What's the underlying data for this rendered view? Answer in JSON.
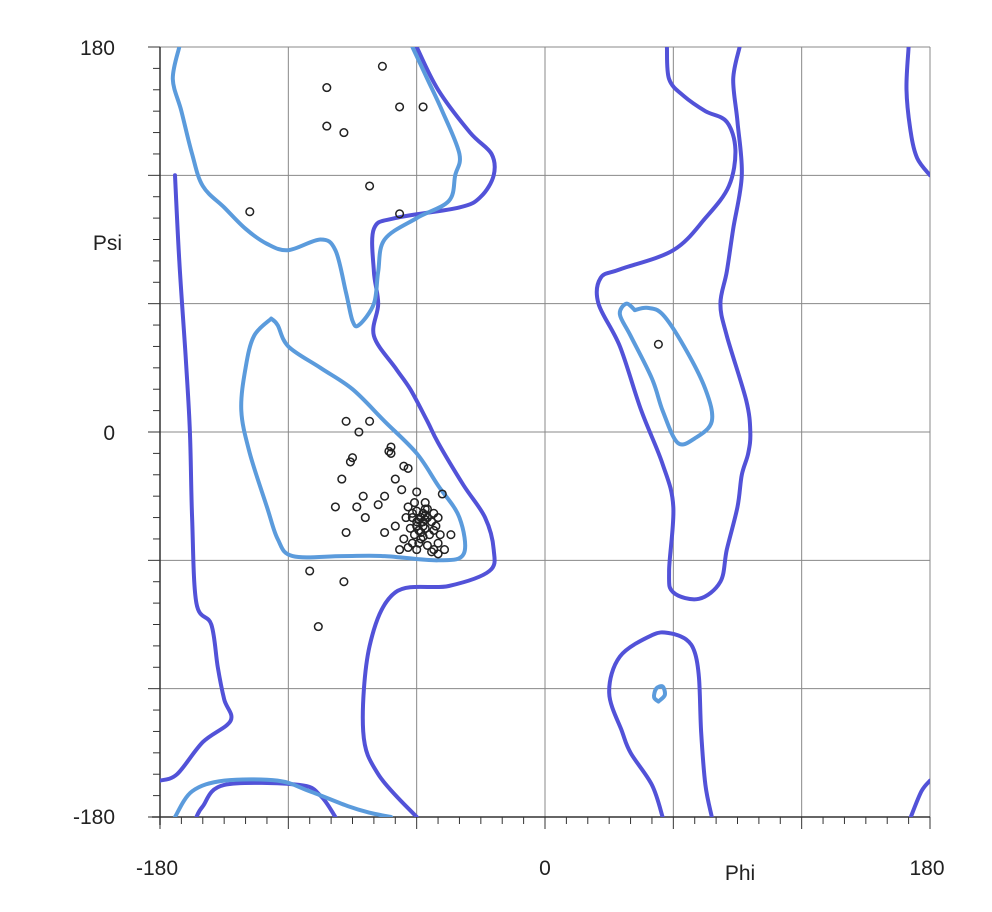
{
  "chart_data": {
    "type": "scatter",
    "title": "",
    "xlabel": "Phi",
    "ylabel": "Psi",
    "xlim": [
      -180,
      180
    ],
    "ylim": [
      -180,
      180
    ],
    "grid": true,
    "major_grid_step": 60,
    "x_tick_labels": [
      "-180",
      "0",
      "180"
    ],
    "x_tick_values": [
      -180,
      0,
      180
    ],
    "y_tick_labels": [
      "180",
      "0",
      "-180"
    ],
    "y_tick_values": [
      180,
      0,
      -180
    ],
    "colors": {
      "favored_contour": "#5b9bdc",
      "allowed_contour": "#5252d8",
      "points": "#222222",
      "grid": "#888888"
    },
    "contours": {
      "allowed": [
        [
          [
            -173,
            120
          ],
          [
            -171,
            80
          ],
          [
            -168,
            35
          ],
          [
            -166,
            0
          ],
          [
            -165,
            -40
          ],
          [
            -163,
            -80
          ],
          [
            -156,
            -90
          ],
          [
            -153,
            -110
          ],
          [
            -150,
            -125
          ],
          [
            -147,
            -135
          ],
          [
            -160,
            -145
          ],
          [
            -172,
            -160
          ],
          [
            -180,
            -163
          ]
        ],
        [
          [
            -98,
            -180
          ],
          [
            -105,
            -170
          ],
          [
            -115,
            -165
          ],
          [
            -150,
            -165
          ],
          [
            -160,
            -175
          ],
          [
            -163,
            -180
          ]
        ],
        [
          [
            -60,
            180
          ],
          [
            -50,
            160
          ],
          [
            -35,
            140
          ],
          [
            -25,
            130
          ],
          [
            -24,
            120
          ],
          [
            -30,
            110
          ],
          [
            -40,
            105
          ],
          [
            -70,
            100
          ],
          [
            -80,
            95
          ],
          [
            -80,
            75
          ],
          [
            -78,
            60
          ],
          [
            -80,
            45
          ],
          [
            -70,
            30
          ],
          [
            -63,
            20
          ],
          [
            -55,
            5
          ],
          [
            -50,
            -5
          ],
          [
            -38,
            -25
          ],
          [
            -28,
            -40
          ],
          [
            -24,
            -55
          ],
          [
            -26,
            -65
          ],
          [
            -45,
            -72
          ],
          [
            -70,
            -75
          ],
          [
            -82,
            -100
          ],
          [
            -85,
            -140
          ],
          [
            -78,
            -160
          ],
          [
            -60,
            -180
          ]
        ],
        [
          [
            57,
            180
          ],
          [
            58,
            165
          ],
          [
            65,
            157
          ],
          [
            75,
            150
          ],
          [
            85,
            145
          ],
          [
            89,
            132
          ],
          [
            86,
            115
          ],
          [
            75,
            100
          ],
          [
            60,
            85
          ],
          [
            35,
            76
          ],
          [
            26,
            72
          ],
          [
            25,
            60
          ],
          [
            35,
            40
          ],
          [
            45,
            10
          ],
          [
            55,
            -15
          ],
          [
            60,
            -35
          ],
          [
            58,
            -65
          ],
          [
            60,
            -75
          ],
          [
            72,
            -78
          ],
          [
            82,
            -70
          ],
          [
            85,
            -55
          ],
          [
            90,
            -35
          ],
          [
            92,
            -20
          ],
          [
            95,
            -10
          ],
          [
            96,
            0
          ],
          [
            94,
            15
          ],
          [
            85,
            45
          ],
          [
            82,
            60
          ],
          [
            85,
            75
          ],
          [
            88,
            95
          ],
          [
            92,
            120
          ],
          [
            90,
            145
          ],
          [
            88,
            165
          ],
          [
            91,
            180
          ]
        ],
        [
          [
            55,
            -180
          ],
          [
            50,
            -165
          ],
          [
            40,
            -150
          ],
          [
            36,
            -140
          ],
          [
            30,
            -122
          ],
          [
            35,
            -105
          ],
          [
            50,
            -95
          ],
          [
            58,
            -94
          ],
          [
            66,
            -97
          ],
          [
            70,
            -103
          ],
          [
            72,
            -115
          ],
          [
            73,
            -140
          ],
          [
            75,
            -165
          ],
          [
            78,
            -180
          ]
        ],
        [
          [
            170,
            180
          ],
          [
            169,
            160
          ],
          [
            171,
            140
          ],
          [
            174,
            128
          ],
          [
            180,
            120
          ]
        ],
        [
          [
            180,
            -163
          ],
          [
            176,
            -168
          ],
          [
            171,
            -180
          ]
        ]
      ],
      "favored": [
        [
          [
            -171,
            180
          ],
          [
            -174,
            165
          ],
          [
            -170,
            150
          ],
          [
            -165,
            130
          ],
          [
            -160,
            115
          ],
          [
            -150,
            105
          ],
          [
            -140,
            95
          ],
          [
            -130,
            88
          ],
          [
            -120,
            85
          ],
          [
            -105,
            90
          ],
          [
            -98,
            85
          ],
          [
            -93,
            65
          ],
          [
            -90,
            52
          ],
          [
            -87,
            50
          ],
          [
            -80,
            60
          ],
          [
            -78,
            75
          ],
          [
            -75,
            90
          ],
          [
            -60,
            100
          ],
          [
            -45,
            108
          ],
          [
            -42,
            120
          ],
          [
            -40,
            130
          ],
          [
            -48,
            150
          ],
          [
            -55,
            165
          ],
          [
            -62,
            180
          ]
        ],
        [
          [
            -128,
            53
          ],
          [
            -136,
            45
          ],
          [
            -140,
            30
          ],
          [
            -142,
            10
          ],
          [
            -138,
            -10
          ],
          [
            -130,
            -35
          ],
          [
            -125,
            -50
          ],
          [
            -118,
            -58
          ],
          [
            -95,
            -58
          ],
          [
            -75,
            -58
          ],
          [
            -50,
            -60
          ],
          [
            -38,
            -57
          ],
          [
            -40,
            -40
          ],
          [
            -50,
            -25
          ],
          [
            -60,
            -10
          ],
          [
            -75,
            5
          ],
          [
            -90,
            20
          ],
          [
            -105,
            30
          ],
          [
            -120,
            40
          ],
          [
            -125,
            50
          ],
          [
            -128,
            53
          ]
        ],
        [
          [
            -173,
            -180
          ],
          [
            -165,
            -168
          ],
          [
            -150,
            -163
          ],
          [
            -125,
            -163
          ],
          [
            -110,
            -168
          ],
          [
            -92,
            -175
          ],
          [
            -82,
            -178
          ],
          [
            -72,
            -180
          ]
        ],
        [
          [
            42,
            57
          ],
          [
            38,
            60
          ],
          [
            35,
            55
          ],
          [
            40,
            45
          ],
          [
            50,
            25
          ],
          [
            55,
            10
          ],
          [
            62,
            -5
          ],
          [
            70,
            -3
          ],
          [
            78,
            5
          ],
          [
            75,
            20
          ],
          [
            65,
            40
          ],
          [
            55,
            55
          ],
          [
            48,
            58
          ],
          [
            42,
            57
          ]
        ],
        [
          [
            53,
            -126
          ],
          [
            56,
            -123
          ],
          [
            55,
            -119
          ],
          [
            52,
            -120
          ],
          [
            51,
            -124
          ],
          [
            53,
            -126
          ]
        ]
      ]
    },
    "points": [
      [
        -76,
        171
      ],
      [
        -102,
        161
      ],
      [
        -68,
        152
      ],
      [
        -57,
        152
      ],
      [
        -102,
        143
      ],
      [
        -94,
        140
      ],
      [
        -82,
        115
      ],
      [
        -138,
        103
      ],
      [
        -68,
        102
      ],
      [
        -93,
        5
      ],
      [
        -82,
        5
      ],
      [
        -87,
        0
      ],
      [
        -90,
        -12
      ],
      [
        -91,
        -14
      ],
      [
        -95,
        -22
      ],
      [
        -72,
        -7
      ],
      [
        -73,
        -9
      ],
      [
        -72,
        -10
      ],
      [
        -66,
        -16
      ],
      [
        -64,
        -17
      ],
      [
        -70,
        -22
      ],
      [
        -67,
        -27
      ],
      [
        -75,
        -30
      ],
      [
        -85,
        -30
      ],
      [
        -88,
        -35
      ],
      [
        -78,
        -34
      ],
      [
        -98,
        -35
      ],
      [
        -84,
        -40
      ],
      [
        -60,
        -28
      ],
      [
        -48,
        -29
      ],
      [
        -56,
        -36
      ],
      [
        -52,
        -38
      ],
      [
        -44,
        -48
      ],
      [
        -93,
        -47
      ],
      [
        -75,
        -47
      ],
      [
        -70,
        -44
      ],
      [
        -65,
        -40
      ],
      [
        -60,
        -42
      ],
      [
        -56,
        -45
      ],
      [
        -52,
        -46
      ],
      [
        -58,
        -50
      ],
      [
        -55,
        -53
      ],
      [
        -50,
        -52
      ],
      [
        -60,
        -55
      ],
      [
        -52,
        -55
      ],
      [
        -53,
        -56
      ],
      [
        -66,
        -50
      ],
      [
        -63,
        -45
      ],
      [
        -57,
        -42
      ],
      [
        -62,
        -40
      ],
      [
        -58,
        -40
      ],
      [
        -64,
        -35
      ],
      [
        -61,
        -33
      ],
      [
        -55,
        -36
      ],
      [
        -57,
        -38
      ],
      [
        -59,
        -46
      ],
      [
        -61,
        -48
      ],
      [
        -54,
        -48
      ],
      [
        -57,
        -44
      ],
      [
        -56,
        -41
      ],
      [
        -59,
        -41
      ],
      [
        -60,
        -44
      ],
      [
        -58,
        -47
      ],
      [
        -57,
        -49
      ],
      [
        -55,
        -40
      ],
      [
        -53,
        -42
      ],
      [
        -56,
        -39
      ],
      [
        -59,
        -52
      ],
      [
        -62,
        -52
      ],
      [
        -64,
        -54
      ],
      [
        -68,
        -55
      ],
      [
        -50,
        -57
      ],
      [
        -47,
        -55
      ],
      [
        -49,
        -48
      ],
      [
        -51,
        -44
      ],
      [
        -50,
        -40
      ],
      [
        -56,
        -33
      ],
      [
        -60,
        -37
      ],
      [
        -62,
        -38
      ],
      [
        -110,
        -65
      ],
      [
        -94,
        -70
      ],
      [
        -106,
        -91
      ],
      [
        53,
        41
      ]
    ]
  }
}
